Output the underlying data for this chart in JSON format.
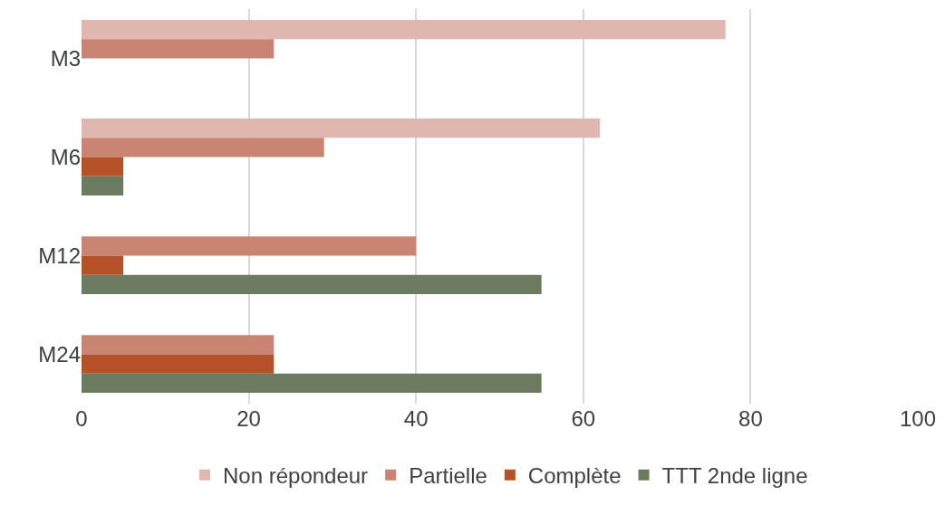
{
  "chart_data": {
    "type": "bar",
    "orientation": "horizontal",
    "categories": [
      "M3",
      "M6",
      "M12",
      "M24"
    ],
    "series": [
      {
        "name": "Non répondeur",
        "color": "#e0b7b0",
        "values": [
          77,
          62,
          0,
          0
        ]
      },
      {
        "name": "Partielle",
        "color": "#c98473",
        "values": [
          23,
          29,
          40,
          23
        ]
      },
      {
        "name": "Complète",
        "color": "#b5522a",
        "values": [
          0,
          5,
          5,
          23
        ]
      },
      {
        "name": "TTT 2nde ligne",
        "color": "#6b7b60",
        "values": [
          0,
          5,
          55,
          55
        ]
      }
    ],
    "xlim": [
      0,
      100
    ],
    "xticks": [
      0,
      20,
      40,
      60,
      80,
      100
    ],
    "grid": "x",
    "legend": "bottom"
  }
}
